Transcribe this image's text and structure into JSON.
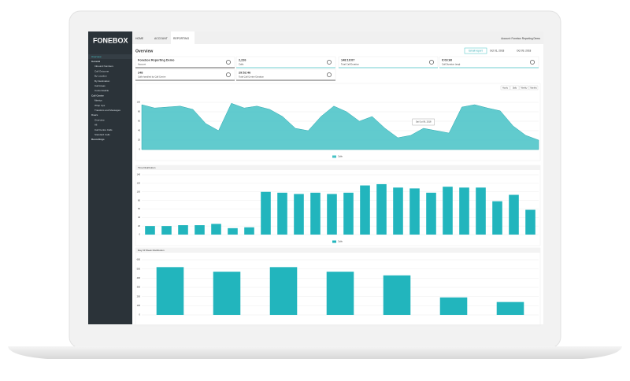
{
  "brand": "FONEBOX",
  "nav": [
    "HOME",
    "ACCOUNT",
    "REPORTING"
  ],
  "account": "Account: Fonebox Reporting Demo",
  "page_title": "Overview",
  "email_button": "Email report",
  "date_from": "Oct 01, 2018",
  "date_to": "Oct 09, 2018",
  "sidebar": [
    "Overview",
    "General",
    "Inbound Numbers",
    "Call Outcome",
    "By Location",
    "By Destination",
    "Call Areas",
    "Customisable",
    "Call Centre",
    "Metrics",
    "Wrap Ups",
    "Transfers and Messages",
    "Users",
    "Overview",
    "All",
    "Call Centre Calls",
    "Standard Calls",
    "Recordings"
  ],
  "stats": [
    {
      "value": "Fonebox Reporting Demo",
      "label": "Account"
    },
    {
      "value": "2,226",
      "label": "Calls"
    },
    {
      "value": "148:19:07",
      "label": "Total Call Duration"
    },
    {
      "value": "0:03:60",
      "label": "Call Duration (avg)"
    },
    {
      "value": "248",
      "label": "Calls handled by Call Centre"
    },
    {
      "value": "29:52:46",
      "label": "Total Call Centre Duration"
    }
  ],
  "charts": [
    {
      "type": "area",
      "buttons": [
        "Hourly",
        "Daily",
        "Weekly",
        "Monthly"
      ],
      "tooltip": "Sat Oct 06, 2018",
      "legend": "Calls",
      "color": "#45c2c5",
      "ylim": [
        0,
        110
      ],
      "yticks": [
        0,
        20,
        40,
        60,
        80,
        100
      ],
      "values": [
        95,
        88,
        90,
        92,
        85,
        55,
        40,
        98,
        88,
        92,
        85,
        70,
        45,
        40,
        70,
        92,
        80,
        60,
        70,
        45,
        25,
        30,
        45,
        40,
        35,
        90,
        95,
        88,
        82,
        50,
        30,
        20
      ]
    },
    {
      "type": "bar",
      "title": "Time Distribution",
      "legend": "Calls",
      "color": "#22b5bd",
      "ylim": [
        0,
        140
      ],
      "yticks": [
        0,
        20,
        40,
        60,
        80,
        100,
        120,
        140
      ],
      "values": [
        20,
        20,
        22,
        22,
        25,
        15,
        17,
        100,
        98,
        95,
        98,
        95,
        98,
        115,
        118,
        110,
        108,
        98,
        112,
        110,
        110,
        78,
        93,
        58
      ]
    },
    {
      "type": "bar",
      "title": "Day Of Week Distribution",
      "color": "#22b5bd",
      "ylim": [
        0,
        600
      ],
      "yticks": [
        0,
        100,
        200,
        300,
        400,
        500,
        600
      ],
      "values": [
        520,
        470,
        520,
        470,
        430,
        190,
        140
      ]
    }
  ]
}
